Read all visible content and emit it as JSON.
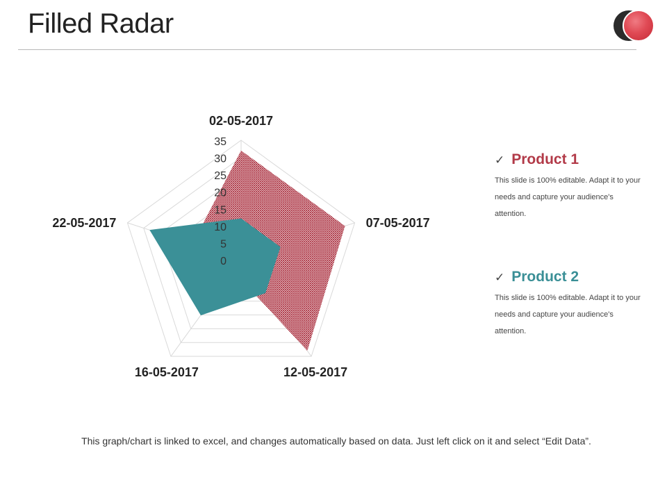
{
  "slide": {
    "title": "Filled Radar",
    "footer": "This graph/chart is linked to excel, and changes automatically  based on data. Just left click on it and select “Edit Data”."
  },
  "legend": [
    {
      "check": "✓",
      "name": "Product 1",
      "color": "#b23a48",
      "description": "This slide is 100% editable. Adapt it to your needs and capture your audience's attention."
    },
    {
      "check": "✓",
      "name": "Product 2",
      "color": "#3a8f96",
      "description": "This slide is 100% editable. Adapt it to your needs and capture your audience's attention."
    }
  ],
  "chart_data": {
    "type": "radar",
    "categories": [
      "02-05-2017",
      "07-05-2017",
      "12-05-2017",
      "16-05-2017",
      "22-05-2017"
    ],
    "rlim": [
      0,
      35
    ],
    "ticks": [
      0,
      5,
      10,
      15,
      20,
      25,
      30,
      35
    ],
    "grid": true,
    "series": [
      {
        "name": "Product 1",
        "values": [
          32,
          32,
          33,
          4,
          15
        ],
        "color": "#a82a3a",
        "fill": "hatched"
      },
      {
        "name": "Product 2",
        "values": [
          12,
          12,
          12,
          20,
          28
        ],
        "color": "#3b9097",
        "fill": "solid"
      }
    ]
  }
}
